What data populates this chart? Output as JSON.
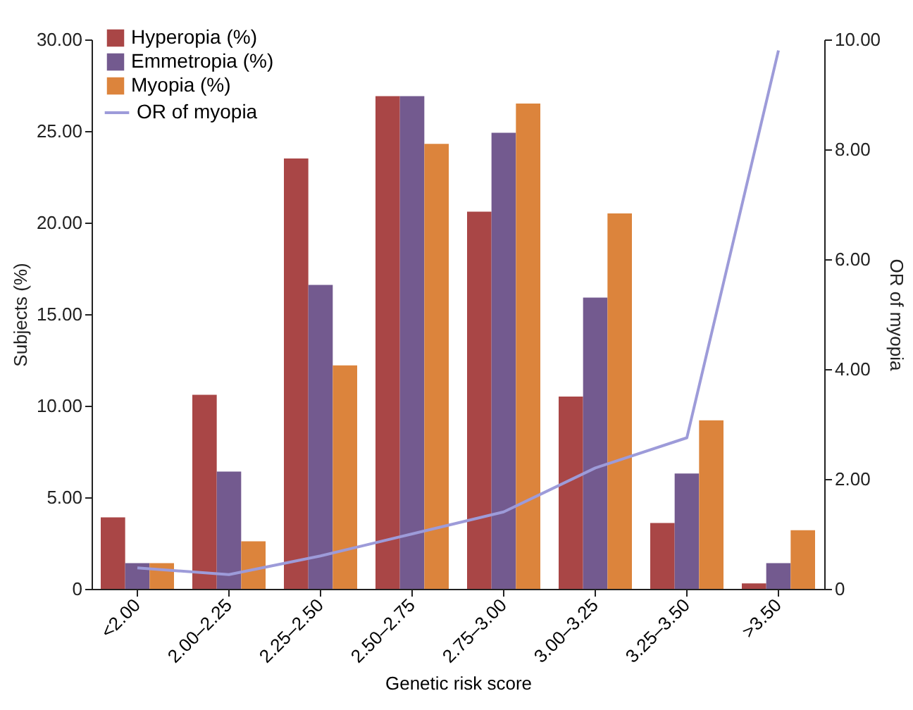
{
  "chart_data": {
    "type": "bar",
    "xlabel": "Genetic risk score",
    "ylabel": "Subjects (%)",
    "y2label": "OR of myopia",
    "categories": [
      "<2.00",
      "2.00–2.25",
      "2.25–2.50",
      "2.50–2.75",
      "2.75–3.00",
      "3.00–3.25",
      "3.25–3.50",
      ">3.50"
    ],
    "series": [
      {
        "name": "Hyperopia (%)",
        "color": "#a94646",
        "values": [
          3.9,
          10.6,
          23.5,
          26.9,
          20.6,
          10.5,
          3.6,
          0.3
        ]
      },
      {
        "name": "Emmetropia (%)",
        "color": "#735a8f",
        "values": [
          1.4,
          6.4,
          16.6,
          26.9,
          24.9,
          15.9,
          6.3,
          1.4
        ]
      },
      {
        "name": "Myopia (%)",
        "color": "#dc843c",
        "values": [
          1.4,
          2.6,
          12.2,
          24.3,
          26.5,
          20.5,
          9.2,
          3.2
        ]
      },
      {
        "name": "OR of myopia",
        "type": "line",
        "axis": "y2",
        "color": "#9d9bd9",
        "values": [
          0.38,
          0.26,
          0.6,
          1.0,
          1.4,
          2.2,
          2.75,
          9.8
        ]
      }
    ],
    "ylim": [
      0,
      30
    ],
    "yticks": [
      {
        "value": 0,
        "label": "0"
      },
      {
        "value": 5,
        "label": "5.00"
      },
      {
        "value": 10,
        "label": "10.00"
      },
      {
        "value": 15,
        "label": "15.00"
      },
      {
        "value": 20,
        "label": "20.00"
      },
      {
        "value": 25,
        "label": "25.00"
      },
      {
        "value": 30,
        "label": "30.00"
      }
    ],
    "y2lim": [
      0,
      10
    ],
    "y2ticks": [
      {
        "value": 0,
        "label": "0"
      },
      {
        "value": 2,
        "label": "2.00"
      },
      {
        "value": 4,
        "label": "4.00"
      },
      {
        "value": 6,
        "label": "6.00"
      },
      {
        "value": 8,
        "label": "8.00"
      },
      {
        "value": 10,
        "label": "10.00"
      }
    ],
    "grid": false,
    "legend": "top left",
    "marker": "none",
    "line_style": "solid"
  }
}
